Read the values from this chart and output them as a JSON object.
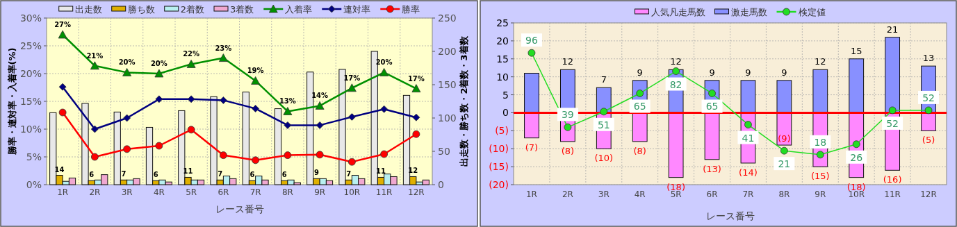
{
  "chart_data": [
    {
      "type": "bar",
      "categories": [
        "1R",
        "2R",
        "3R",
        "4R",
        "5R",
        "6R",
        "7R",
        "8R",
        "9R",
        "10R",
        "11R",
        "12R"
      ],
      "xlabel": "レース番号",
      "ylabel": "勝率・連対率・入着率(%)",
      "y2label": "出走数・勝ち数・2着数・3着数",
      "ylim": [
        0,
        30
      ],
      "yticks": [
        {
          "value": 0,
          "label": "0%"
        },
        {
          "value": 5,
          "label": "5%"
        },
        {
          "value": 10,
          "label": "10%"
        },
        {
          "value": 15,
          "label": "15%"
        },
        {
          "value": 20,
          "label": "20%"
        },
        {
          "value": 25,
          "label": "25%"
        },
        {
          "value": 30,
          "label": "30%"
        }
      ],
      "y2lim": [
        0,
        250
      ],
      "y2ticks": [
        0,
        50,
        100,
        150,
        200,
        250
      ],
      "grid": true,
      "legend": "top",
      "series": [
        {
          "name": "出走数",
          "axis": "y2",
          "color": "#e8e8e8",
          "values": [
            108,
            122,
            109,
            86,
            111,
            132,
            139,
            114,
            169,
            173,
            200,
            134
          ]
        },
        {
          "name": "勝ち数",
          "axis": "y2",
          "color": "#e0b000",
          "values": [
            14,
            6,
            7,
            6,
            11,
            7,
            6,
            6,
            9,
            7,
            11,
            12
          ],
          "value_labels": [
            "14",
            "6",
            "7",
            "6",
            "11",
            "7",
            "6",
            "6",
            "9",
            "7",
            "11",
            "12"
          ]
        },
        {
          "name": "2着数",
          "axis": "y2",
          "color": "#b8f0f0",
          "values": [
            5,
            7,
            7,
            7,
            7,
            13,
            13,
            7,
            9,
            14,
            16,
            4
          ]
        },
        {
          "name": "3着数",
          "axis": "y2",
          "color": "#f0a8d0",
          "values": [
            10,
            15,
            9,
            4,
            7,
            9,
            7,
            3,
            6,
            9,
            12,
            7
          ]
        },
        {
          "name": "入着率",
          "type": "line",
          "color": "#009000",
          "marker": "triangle",
          "values": [
            27.0,
            21.4,
            20.2,
            20.0,
            21.7,
            22.8,
            18.7,
            13.2,
            14.2,
            17.4,
            20.2,
            17.3
          ],
          "value_labels": [
            "27%",
            "21%",
            "20%",
            "20%",
            "22%",
            "23%",
            "19%",
            "13%",
            "14%",
            "17%",
            "20%",
            "17%"
          ]
        },
        {
          "name": "連対率",
          "type": "line",
          "color": "#000080",
          "marker": "diamond",
          "values": [
            17.6,
            10.0,
            12.0,
            15.4,
            15.4,
            15.2,
            13.7,
            10.7,
            10.7,
            12.2,
            13.6,
            12.1
          ]
        },
        {
          "name": "勝率",
          "type": "line",
          "color": "#ff0000",
          "marker": "circle",
          "values": [
            13.0,
            5.0,
            6.4,
            7.0,
            9.9,
            5.3,
            4.4,
            5.3,
            5.4,
            4.1,
            5.5,
            9.1
          ]
        }
      ]
    },
    {
      "type": "bar",
      "stacked": true,
      "categories": [
        "1R",
        "2R",
        "3R",
        "4R",
        "5R",
        "6R",
        "7R",
        "8R",
        "9R",
        "10R",
        "11R",
        "12R"
      ],
      "xlabel": "レース番号",
      "ylim": [
        -20,
        25
      ],
      "yticks": [
        {
          "value": -20,
          "label": "(20)"
        },
        {
          "value": -15,
          "label": "(15)"
        },
        {
          "value": -10,
          "label": "(10)"
        },
        {
          "value": -5,
          "label": "(5)"
        },
        0,
        5,
        10,
        15,
        20,
        25
      ],
      "y2lim": [
        -5,
        119
      ],
      "grid": true,
      "legend": "top",
      "ref_lines": [
        {
          "axis": "y",
          "value": 0,
          "color": "#ff0000"
        }
      ],
      "series": [
        {
          "name": "人気凡走馬数",
          "color": "#ff88ff",
          "values": [
            -7,
            -8,
            -10,
            -8,
            -18,
            -13,
            -14,
            -9,
            -15,
            -18,
            -16,
            -5
          ],
          "value_labels": [
            "(7)",
            "(8)",
            "(10)",
            "(8)",
            "(18)",
            "(13)",
            "(14)",
            "(9)",
            "(15)",
            "(18)",
            "(16)",
            "(5)"
          ]
        },
        {
          "name": "激走馬数",
          "color": "#8890ff",
          "values": [
            11,
            12,
            7,
            9,
            12,
            9,
            9,
            9,
            12,
            15,
            21,
            13
          ],
          "value_labels": [
            null,
            "12",
            "7",
            "9",
            "12",
            "9",
            "9",
            "9",
            "12",
            "15",
            "21",
            "13"
          ]
        },
        {
          "name": "検定値",
          "type": "line",
          "axis": "y2",
          "color": "#22dd22",
          "marker": "circle",
          "values": [
            96,
            39,
            51,
            65,
            82,
            65,
            41,
            21,
            18,
            26,
            52,
            52
          ],
          "value_labels": [
            "96",
            "39",
            "51",
            "65",
            "82",
            "65",
            "41",
            "21",
            "18",
            "26",
            "52",
            "52"
          ]
        }
      ]
    }
  ]
}
